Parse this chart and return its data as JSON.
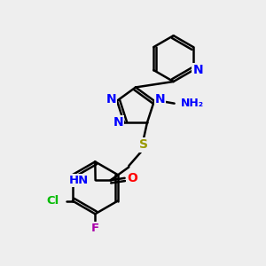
{
  "background_color": "#eeeeee",
  "atom_colors": {
    "C": "#000000",
    "N": "#0000ff",
    "O": "#ff0000",
    "S": "#999900",
    "Cl": "#00bb00",
    "F": "#aa00aa",
    "H": "#000000"
  },
  "bond_color": "#000000",
  "bond_width": 1.8,
  "figsize": [
    3.0,
    3.0
  ],
  "dpi": 100,
  "xlim": [
    0,
    10
  ],
  "ylim": [
    0,
    10
  ]
}
